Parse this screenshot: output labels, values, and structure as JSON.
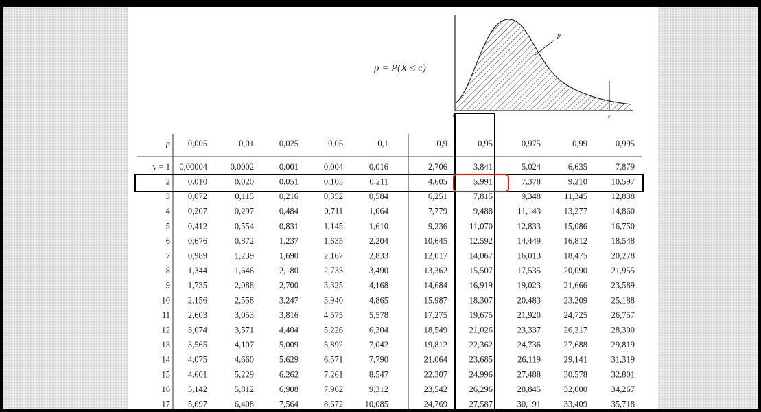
{
  "formula": "p = P(X ≤ c)",
  "graph": {
    "p": "p",
    "origin": "0",
    "c": "c"
  },
  "table": {
    "header": [
      "p",
      "0,005",
      "0,01",
      "0,025",
      "0,05",
      "0,1",
      "0,9",
      "0,95",
      "0,975",
      "0,99",
      "0,995"
    ],
    "rows": [
      [
        "ν = 1",
        "0,00004",
        "0,0002",
        "0,001",
        "0,004",
        "0,016",
        "2,706",
        "3,841",
        "5,024",
        "6,635",
        "7,879"
      ],
      [
        "2",
        "0,010",
        "0,020",
        "0,051",
        "0,103",
        "0,211",
        "4,605",
        "5,991",
        "7,378",
        "9,210",
        "10,597"
      ],
      [
        "3",
        "0,072",
        "0,115",
        "0,216",
        "0,352",
        "0,584",
        "6,251",
        "7,815",
        "9,348",
        "11,345",
        "12,838"
      ],
      [
        "4",
        "0,207",
        "0,297",
        "0,484",
        "0,711",
        "1,064",
        "7,779",
        "9,488",
        "11,143",
        "13,277",
        "14,860"
      ],
      [
        "5",
        "0,412",
        "0,554",
        "0,831",
        "1,145",
        "1,610",
        "9,236",
        "11,070",
        "12,833",
        "15,086",
        "16,750"
      ],
      [
        "6",
        "0,676",
        "0,872",
        "1,237",
        "1,635",
        "2,204",
        "10,645",
        "12,592",
        "14,449",
        "16,812",
        "18,548"
      ],
      [
        "7",
        "0,989",
        "1,239",
        "1,690",
        "2,167",
        "2,833",
        "12,017",
        "14,067",
        "16,013",
        "18,475",
        "20,278"
      ],
      [
        "8",
        "1,344",
        "1,646",
        "2,180",
        "2,733",
        "3,490",
        "13,362",
        "15,507",
        "17,535",
        "20,090",
        "21,955"
      ],
      [
        "9",
        "1,735",
        "2,088",
        "2,700",
        "3,325",
        "4,168",
        "14,684",
        "16,919",
        "19,023",
        "21,666",
        "23,589"
      ],
      [
        "10",
        "2,156",
        "2,558",
        "3,247",
        "3,940",
        "4,865",
        "15,987",
        "18,307",
        "20,483",
        "23,209",
        "25,188"
      ],
      [
        "11",
        "2,603",
        "3,053",
        "3,816",
        "4,575",
        "5,578",
        "17,275",
        "19,675",
        "21,920",
        "24,725",
        "26,757"
      ],
      [
        "12",
        "3,074",
        "3,571",
        "4,404",
        "5,226",
        "6,304",
        "18,549",
        "21,026",
        "23,337",
        "26,217",
        "28,300"
      ],
      [
        "13",
        "3,565",
        "4,107",
        "5,009",
        "5,892",
        "7,042",
        "19,812",
        "22,362",
        "24,736",
        "27,688",
        "29,819"
      ],
      [
        "14",
        "4,075",
        "4,660",
        "5,629",
        "6,571",
        "7,790",
        "21,064",
        "23,685",
        "26,119",
        "29,141",
        "31,319"
      ],
      [
        "15",
        "4,601",
        "5,229",
        "6,262",
        "7,261",
        "8,547",
        "22,307",
        "24,996",
        "27,488",
        "30,578",
        "32,801"
      ],
      [
        "16",
        "5,142",
        "5,812",
        "6,908",
        "7,962",
        "9,312",
        "23,542",
        "26,296",
        "28,845",
        "32,000",
        "34,267"
      ],
      [
        "17",
        "5,697",
        "6,408",
        "7,564",
        "8,672",
        "10,085",
        "24,769",
        "27,587",
        "30,191",
        "33,409",
        "35,718"
      ]
    ]
  }
}
